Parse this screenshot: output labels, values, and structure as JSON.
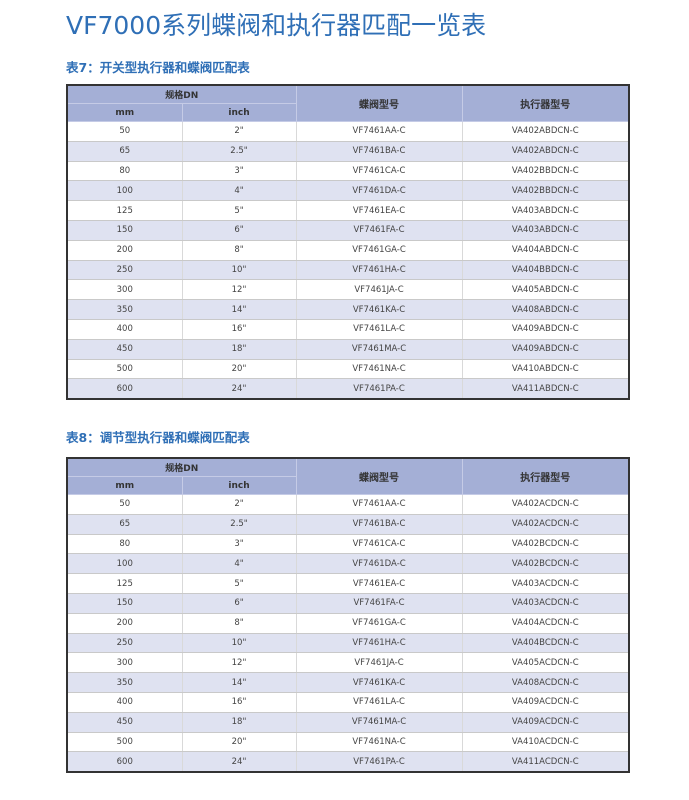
{
  "title": "VF7000系列蝶阀和执行器匹配一览表",
  "colors": {
    "accent": "#2f6fb6",
    "header": "#a4afd6",
    "alt_row": "#dfe2f1"
  },
  "tables": [
    {
      "heading": "表7：开关型执行器和蝶阀匹配表",
      "headers": {
        "spec": "规格DN",
        "mm": "mm",
        "inch": "inch",
        "valve": "蝶阀型号",
        "actuator": "执行器型号"
      },
      "rows": [
        [
          "50",
          "2\"",
          "VF7461AA-C",
          "VA402ABDCN-C"
        ],
        [
          "65",
          "2.5\"",
          "VF7461BA-C",
          "VA402ABDCN-C"
        ],
        [
          "80",
          "3\"",
          "VF7461CA-C",
          "VA402BBDCN-C"
        ],
        [
          "100",
          "4\"",
          "VF7461DA-C",
          "VA402BBDCN-C"
        ],
        [
          "125",
          "5\"",
          "VF7461EA-C",
          "VA403ABDCN-C"
        ],
        [
          "150",
          "6\"",
          "VF7461FA-C",
          "VA403ABDCN-C"
        ],
        [
          "200",
          "8\"",
          "VF7461GA-C",
          "VA404ABDCN-C"
        ],
        [
          "250",
          "10\"",
          "VF7461HA-C",
          "VA404BBDCN-C"
        ],
        [
          "300",
          "12\"",
          "VF7461JA-C",
          "VA405ABDCN-C"
        ],
        [
          "350",
          "14\"",
          "VF7461KA-C",
          "VA408ABDCN-C"
        ],
        [
          "400",
          "16\"",
          "VF7461LA-C",
          "VA409ABDCN-C"
        ],
        [
          "450",
          "18\"",
          "VF7461MA-C",
          "VA409ABDCN-C"
        ],
        [
          "500",
          "20\"",
          "VF7461NA-C",
          "VA410ABDCN-C"
        ],
        [
          "600",
          "24\"",
          "VF7461PA-C",
          "VA411ABDCN-C"
        ]
      ]
    },
    {
      "heading": "表8：调节型执行器和蝶阀匹配表",
      "headers": {
        "spec": "规格DN",
        "mm": "mm",
        "inch": "inch",
        "valve": "蝶阀型号",
        "actuator": "执行器型号"
      },
      "rows": [
        [
          "50",
          "2\"",
          "VF7461AA-C",
          "VA402ACDCN-C"
        ],
        [
          "65",
          "2.5\"",
          "VF7461BA-C",
          "VA402ACDCN-C"
        ],
        [
          "80",
          "3\"",
          "VF7461CA-C",
          "VA402BCDCN-C"
        ],
        [
          "100",
          "4\"",
          "VF7461DA-C",
          "VA402BCDCN-C"
        ],
        [
          "125",
          "5\"",
          "VF7461EA-C",
          "VA403ACDCN-C"
        ],
        [
          "150",
          "6\"",
          "VF7461FA-C",
          "VA403ACDCN-C"
        ],
        [
          "200",
          "8\"",
          "VF7461GA-C",
          "VA404ACDCN-C"
        ],
        [
          "250",
          "10\"",
          "VF7461HA-C",
          "VA404BCDCN-C"
        ],
        [
          "300",
          "12\"",
          "VF7461JA-C",
          "VA405ACDCN-C"
        ],
        [
          "350",
          "14\"",
          "VF7461KA-C",
          "VA408ACDCN-C"
        ],
        [
          "400",
          "16\"",
          "VF7461LA-C",
          "VA409ACDCN-C"
        ],
        [
          "450",
          "18\"",
          "VF7461MA-C",
          "VA409ACDCN-C"
        ],
        [
          "500",
          "20\"",
          "VF7461NA-C",
          "VA410ACDCN-C"
        ],
        [
          "600",
          "24\"",
          "VF7461PA-C",
          "VA411ACDCN-C"
        ]
      ]
    }
  ]
}
